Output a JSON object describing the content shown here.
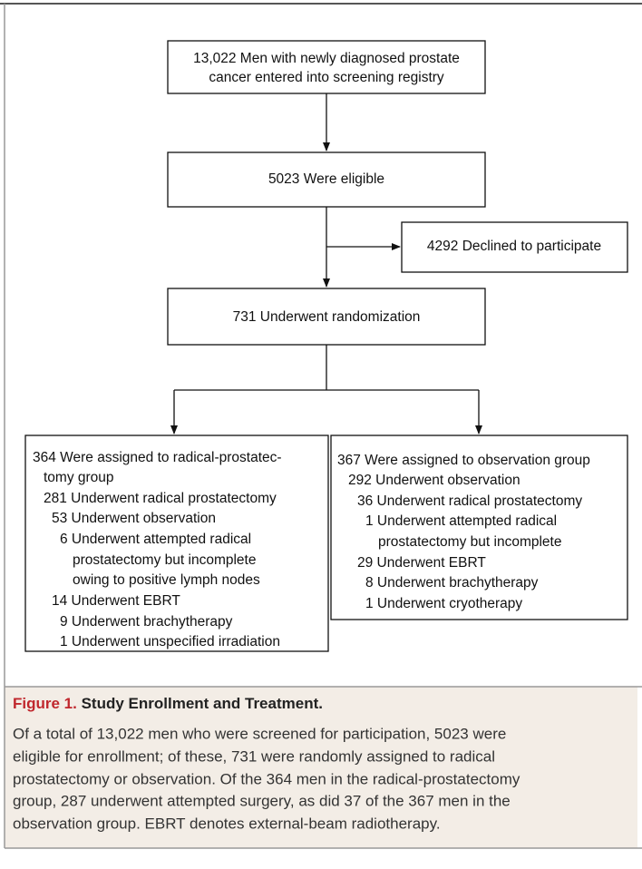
{
  "boxes": [
    {
      "lines": [
        "13,022 Men with newly diagnosed prostate",
        "cancer entered into screening registry"
      ]
    },
    {
      "lines": [
        "5023 Were eligible"
      ]
    },
    {
      "lines": [
        "4292 Declined to participate"
      ]
    },
    {
      "lines": [
        "731 Underwent randomization"
      ]
    },
    {
      "lines": [
        "364 Were assigned to radical-prostatec-",
        "tomy group",
        "281 Underwent radical prostatectomy",
        "53 Underwent observation",
        "6 Underwent attempted radical",
        "prostatectomy but incomplete",
        "owing to positive lymph nodes",
        "14 Underwent EBRT",
        "9 Underwent brachytherapy",
        "1 Underwent unspecified irradiation"
      ]
    },
    {
      "lines": [
        "367 Were assigned to observation group",
        "292 Underwent observation",
        "36 Underwent radical prostatectomy",
        "1 Underwent attempted radical",
        "prostatectomy but incomplete",
        "29 Underwent EBRT",
        "8 Underwent brachytherapy",
        "1 Underwent cryotherapy"
      ]
    }
  ],
  "caption": {
    "label": "Figure 1.",
    "title": "Study Enrollment and Treatment.",
    "lines": [
      "Of a total of 13,022 men who were screened for participation, 5023 were",
      "eligible for enrollment; of these, 731 were randomly assigned to radical",
      "prostatectomy or observation. Of the 364 men in the radical-prostatectomy",
      "group, 287 underwent attempted surgery, as did 37 of the 367 men in the",
      "observation group. EBRT denotes external-beam radiotherapy."
    ]
  }
}
